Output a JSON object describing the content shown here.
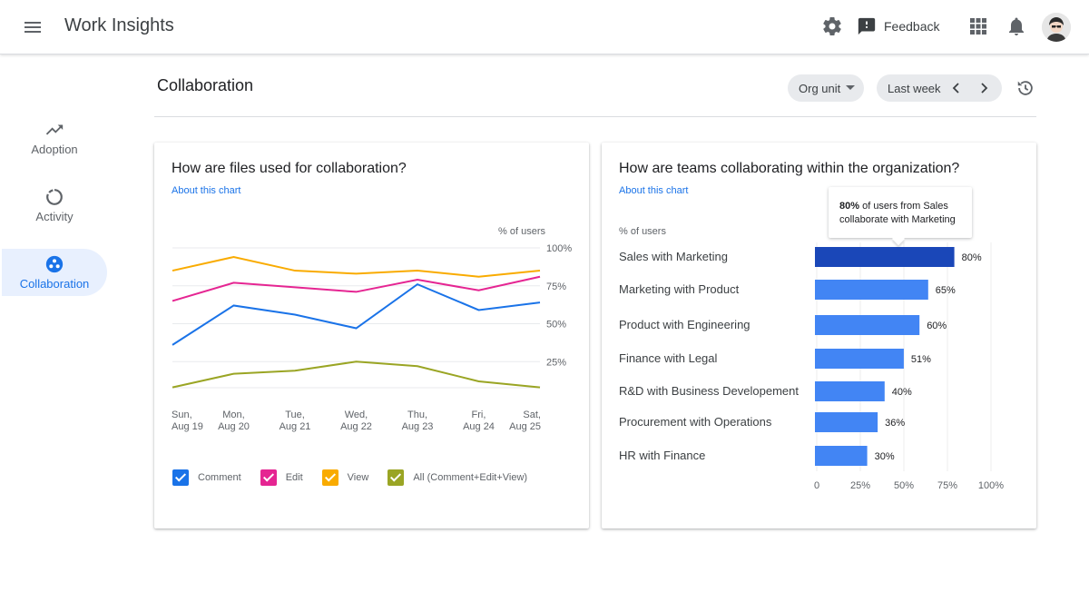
{
  "app": {
    "title": "Work Insights"
  },
  "header": {
    "feedback_label": "Feedback"
  },
  "icons": {
    "menu": "menu-icon",
    "settings": "gear-icon",
    "feedback": "feedback-icon",
    "apps": "apps-grid-icon",
    "notifications": "bell-icon",
    "avatar": "avatar"
  },
  "sidebar": {
    "items": [
      {
        "label": "Adoption",
        "icon": "trending-up-icon",
        "active": false
      },
      {
        "label": "Activity",
        "icon": "activity-ring-icon",
        "active": false
      },
      {
        "label": "Collaboration",
        "icon": "collaboration-icon",
        "active": true
      }
    ]
  },
  "main": {
    "title": "Collaboration",
    "filters": {
      "org_unit": "Org unit",
      "period": "Last week"
    }
  },
  "colors": {
    "comment": "#1a73e8",
    "edit": "#e52592",
    "view": "#f9ab00",
    "all": "#9aa524",
    "bar": "#4285f4",
    "bar_highlight": "#1a47b8"
  },
  "cards": {
    "files": {
      "title": "How are files used for collaboration?",
      "link": "About this chart",
      "ylabel": "% of users",
      "legend": [
        "Comment",
        "Edit",
        "View",
        "All (Comment+Edit+View)"
      ]
    },
    "teams": {
      "title": "How are teams collaborating within the organization?",
      "link": "About this chart",
      "ylabel": "% of users",
      "tooltip": {
        "bold": "80%",
        "rest": " of users from Sales collaborate with Marketing"
      }
    }
  },
  "chart_data": [
    {
      "type": "line",
      "title": "How are files used for collaboration?",
      "ylabel": "% of users",
      "ylim": [
        0,
        100
      ],
      "yticks": [
        "100%",
        "75%",
        "50%",
        "25%"
      ],
      "ytick_values": [
        100,
        75,
        50,
        25
      ],
      "categories": [
        [
          "Sun,",
          "Aug 19"
        ],
        [
          "Mon,",
          "Aug 20"
        ],
        [
          "Tue,",
          "Aug 21"
        ],
        [
          "Wed,",
          "Aug 22"
        ],
        [
          "Thu,",
          "Aug 23"
        ],
        [
          "Fri,",
          "Aug 24"
        ],
        [
          "Sat,",
          "Aug 25"
        ]
      ],
      "series": [
        {
          "name": "Comment",
          "values": [
            36,
            62,
            56,
            47,
            76,
            59,
            64
          ]
        },
        {
          "name": "Edit",
          "values": [
            65,
            77,
            74,
            71,
            79,
            72,
            81
          ]
        },
        {
          "name": "View",
          "values": [
            85,
            94,
            85,
            83,
            85,
            81,
            85
          ]
        },
        {
          "name": "All (Comment+Edit+View)",
          "values": [
            8,
            17,
            19,
            25,
            22,
            12,
            8
          ]
        }
      ],
      "grid": true
    },
    {
      "type": "bar",
      "orientation": "horizontal",
      "ylabel": "% of users",
      "xlim": [
        0,
        100
      ],
      "xticks": [
        "0",
        "25%",
        "50%",
        "75%",
        "100%"
      ],
      "xtick_values": [
        0,
        25,
        50,
        75,
        100
      ],
      "categories": [
        "Sales with Marketing",
        "Marketing with Product",
        "Product with Engineering",
        "Finance with Legal",
        "R&D with Business Developement",
        "Procurement with Operations",
        "HR with Finance"
      ],
      "values": [
        80,
        65,
        60,
        51,
        40,
        36,
        30
      ],
      "value_labels": [
        "80%",
        "65%",
        "60%",
        "51%",
        "40%",
        "36%",
        "30%"
      ],
      "highlighted": 0,
      "grid": true
    }
  ]
}
